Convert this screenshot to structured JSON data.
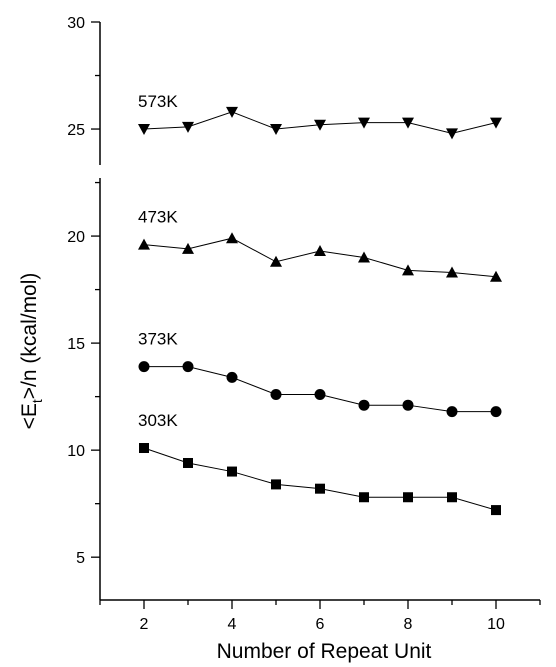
{
  "chart_data": {
    "type": "line",
    "title": "",
    "xlabel": "Number of Repeat Unit",
    "ylabel_main": "<E",
    "ylabel_sub": "t",
    "ylabel_rest": ">/n (kcal/mol)",
    "xlim": [
      1,
      11
    ],
    "ylim": [
      3,
      30
    ],
    "x_major_ticks": [
      2,
      4,
      6,
      8,
      10
    ],
    "x_minor_ticks": [
      1,
      3,
      5,
      7,
      9,
      11
    ],
    "y_major_ticks": [
      5,
      10,
      15,
      20,
      25,
      30
    ],
    "y_minor_ticks": [
      7.5,
      12.5,
      17.5,
      22.5,
      27.5
    ],
    "x": [
      2,
      3,
      4,
      5,
      6,
      7,
      8,
      9,
      10
    ],
    "series": [
      {
        "name": "573K",
        "marker": "triangle-down",
        "values": [
          25.0,
          25.1,
          25.8,
          25.0,
          25.2,
          25.3,
          25.3,
          24.8,
          25.3
        ]
      },
      {
        "name": "473K",
        "marker": "triangle-up",
        "values": [
          19.6,
          19.4,
          19.9,
          18.8,
          19.3,
          19.0,
          18.4,
          18.3,
          18.1
        ]
      },
      {
        "name": "373K",
        "marker": "circle",
        "values": [
          13.9,
          13.9,
          13.4,
          12.6,
          12.6,
          12.1,
          12.1,
          11.8,
          11.8
        ]
      },
      {
        "name": "303K",
        "marker": "square",
        "values": [
          10.1,
          9.4,
          9.0,
          8.4,
          8.2,
          7.8,
          7.8,
          7.8,
          7.2
        ]
      }
    ]
  }
}
